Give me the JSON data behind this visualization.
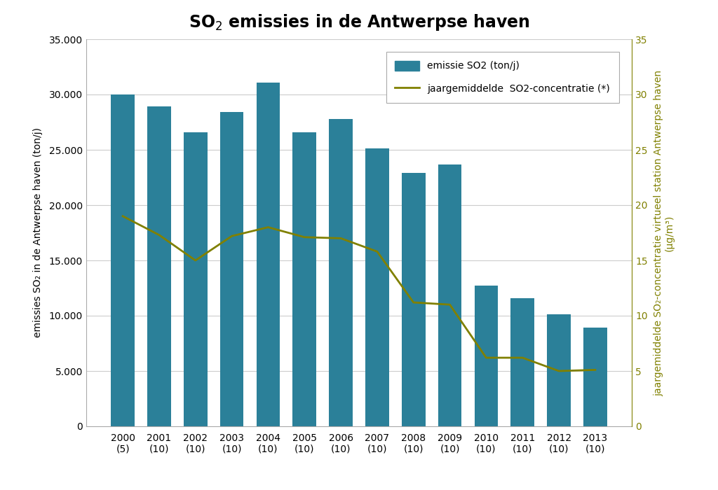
{
  "title": "SO$_2$ emissies in de Antwerpse haven",
  "years": [
    "2000\n(5)",
    "2001\n(10)",
    "2002\n(10)",
    "2003\n(10)",
    "2004\n(10)",
    "2005\n(10)",
    "2006\n(10)",
    "2007\n(10)",
    "2008\n(10)",
    "2009\n(10)",
    "2010\n(10)",
    "2011\n(10)",
    "2012\n(10)",
    "2013\n(10)"
  ],
  "bar_values": [
    30000,
    28900,
    26600,
    28400,
    31100,
    26600,
    27800,
    25100,
    22900,
    23700,
    12700,
    11600,
    10100,
    8900
  ],
  "line_values": [
    19.0,
    17.3,
    15.0,
    17.2,
    18.0,
    17.1,
    17.0,
    15.8,
    11.2,
    11.0,
    6.2,
    6.2,
    5.0,
    5.1
  ],
  "bar_color": "#2b8099",
  "line_color": "#808000",
  "ylabel_left": "emissies SO₂ in de Antwerpse haven (ton/j)",
  "ylabel_right": "jaargemiddelde SO₂-concentratie virtueel station Antwerpse haven\n(µg/m³)",
  "ylim_left": [
    0,
    35000
  ],
  "ylim_right": [
    0,
    35
  ],
  "yticks_left": [
    0,
    5000,
    10000,
    15000,
    20000,
    25000,
    30000,
    35000
  ],
  "ytick_labels_left": [
    "0",
    "5.000",
    "10.000",
    "15.000",
    "20.000",
    "25.000",
    "30.000",
    "35.000"
  ],
  "yticks_right": [
    0,
    5,
    10,
    15,
    20,
    25,
    30,
    35
  ],
  "legend_bar_label": "emissie SO2 (ton/j)",
  "legend_line_label": "jaargemiddelde  SO2-concentratie (*)",
  "background_color": "#ffffff",
  "grid_color": "#cccccc",
  "title_fontsize": 17,
  "axis_label_fontsize": 10,
  "tick_fontsize": 10
}
